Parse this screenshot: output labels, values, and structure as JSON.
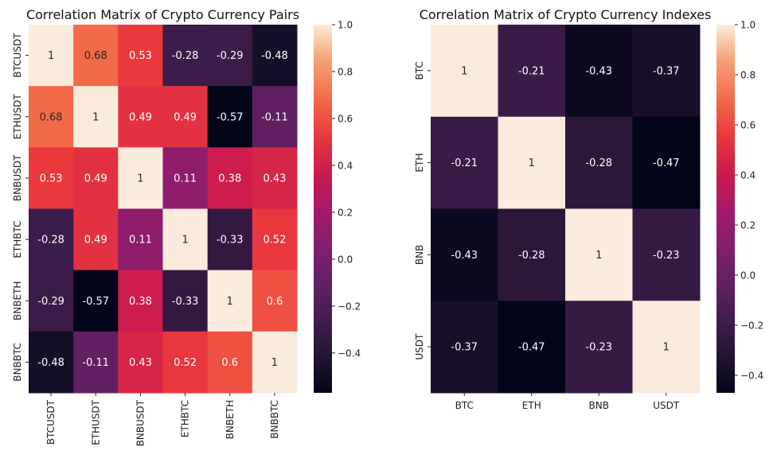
{
  "chart_data": [
    {
      "type": "heatmap",
      "title": "Correlation Matrix of Crypto Currency Pairs",
      "x_labels": [
        "BTCUSDT",
        "ETHUSDT",
        "BNBUSDT",
        "ETHBTC",
        "BNBETH",
        "BNBBTC"
      ],
      "y_labels": [
        "BTCUSDT",
        "ETHUSDT",
        "BNBUSDT",
        "ETHBTC",
        "BNBETH",
        "BNBBTC"
      ],
      "values": [
        [
          1,
          0.68,
          0.53,
          -0.28,
          -0.29,
          -0.48
        ],
        [
          0.68,
          1,
          0.49,
          0.49,
          -0.57,
          -0.11
        ],
        [
          0.53,
          0.49,
          1,
          0.11,
          0.38,
          0.43
        ],
        [
          -0.28,
          0.49,
          0.11,
          1,
          -0.33,
          0.52
        ],
        [
          -0.29,
          -0.57,
          0.38,
          -0.33,
          1,
          0.6
        ],
        [
          -0.48,
          -0.11,
          0.43,
          0.52,
          0.6,
          1
        ]
      ],
      "colorbar": {
        "min": -0.57,
        "max": 1,
        "ticks": [
          1.0,
          0.8,
          0.6,
          0.4,
          0.2,
          0.0,
          -0.2,
          -0.4
        ],
        "tick_labels": [
          "1.0",
          "0.8",
          "0.6",
          "0.4",
          "0.2",
          "0.0",
          "−0.2",
          "−0.4"
        ]
      },
      "x_tick_rotation": "vertical",
      "annotations": true
    },
    {
      "type": "heatmap",
      "title": "Correlation Matrix of Crypto Currency Indexes",
      "x_labels": [
        "BTC",
        "ETH",
        "BNB",
        "USDT"
      ],
      "y_labels": [
        "BTC",
        "ETH",
        "BNB",
        "USDT"
      ],
      "values": [
        [
          1,
          -0.21,
          -0.43,
          -0.37
        ],
        [
          -0.21,
          1,
          -0.28,
          -0.47
        ],
        [
          -0.43,
          -0.28,
          1,
          -0.23
        ],
        [
          -0.37,
          -0.47,
          -0.23,
          1
        ]
      ],
      "colorbar": {
        "min": -0.47,
        "max": 1,
        "ticks": [
          1.0,
          0.8,
          0.6,
          0.4,
          0.2,
          0.0,
          -0.2,
          -0.4
        ],
        "tick_labels": [
          "1.0",
          "0.8",
          "0.6",
          "0.4",
          "0.2",
          "0.0",
          "−0.2",
          "−0.4"
        ]
      },
      "x_tick_rotation": "horizontal",
      "annotations": true
    }
  ]
}
